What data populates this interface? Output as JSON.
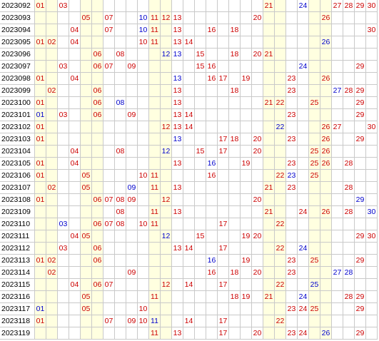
{
  "numbers": [
    "01",
    "02",
    "03",
    "04",
    "05",
    "06",
    "07",
    "08",
    "09",
    "10",
    "11",
    "12",
    "13",
    "14",
    "15",
    "16",
    "17",
    "18",
    "19",
    "20",
    "21",
    "22",
    "23",
    "24",
    "25",
    "26",
    "27",
    "28",
    "29",
    "30"
  ],
  "highlight_columns": [
    "01",
    "02",
    "05",
    "06",
    "11",
    "12",
    "21",
    "22",
    "25",
    "26"
  ],
  "colors": {
    "red": "#cc0000",
    "blue": "#0000cc",
    "highlight": "#ffffe0",
    "grid": "#c9c9c9"
  },
  "rows": [
    {
      "issue": "2023092",
      "red": [
        "01",
        "03",
        "21",
        "27",
        "28",
        "29",
        "30"
      ],
      "blue": [
        "24"
      ]
    },
    {
      "issue": "2023093",
      "red": [
        "05",
        "07",
        "11",
        "12",
        "13",
        "20",
        "26"
      ],
      "blue": [
        "10"
      ]
    },
    {
      "issue": "2023094",
      "red": [
        "04",
        "07",
        "11",
        "13",
        "16",
        "18",
        "30"
      ],
      "blue": [
        "10"
      ]
    },
    {
      "issue": "2023095",
      "red": [
        "01",
        "02",
        "04",
        "10",
        "11",
        "13",
        "14"
      ],
      "blue": [
        "26"
      ]
    },
    {
      "issue": "2023096",
      "red": [
        "06",
        "08",
        "15",
        "18",
        "20",
        "21"
      ],
      "blue": [
        "12",
        "13"
      ]
    },
    {
      "issue": "2023097",
      "red": [
        "03",
        "06",
        "07",
        "09",
        "15",
        "16",
        "29"
      ],
      "blue": [
        "24"
      ]
    },
    {
      "issue": "2023098",
      "red": [
        "01",
        "04",
        "16",
        "17",
        "19",
        "23",
        "26"
      ],
      "blue": [
        "13"
      ]
    },
    {
      "issue": "2023099",
      "red": [
        "02",
        "06",
        "13",
        "18",
        "23",
        "28",
        "29"
      ],
      "blue": [
        "27"
      ]
    },
    {
      "issue": "2023100",
      "red": [
        "01",
        "06",
        "13",
        "21",
        "22",
        "25",
        "29"
      ],
      "blue": [
        "08"
      ]
    },
    {
      "issue": "2023101",
      "red": [
        "03",
        "06",
        "09",
        "13",
        "14",
        "23",
        "29"
      ],
      "blue": [
        "01"
      ]
    },
    {
      "issue": "2023102",
      "red": [
        "01",
        "12",
        "13",
        "14",
        "26",
        "27",
        "30"
      ],
      "blue": [
        "22"
      ]
    },
    {
      "issue": "2023103",
      "red": [
        "01",
        "17",
        "18",
        "20",
        "23",
        "26",
        "29"
      ],
      "blue": [
        "13"
      ]
    },
    {
      "issue": "2023104",
      "red": [
        "04",
        "08",
        "15",
        "17",
        "20",
        "25",
        "26"
      ],
      "blue": [
        "12"
      ]
    },
    {
      "issue": "2023105",
      "red": [
        "01",
        "04",
        "13",
        "19",
        "23",
        "25",
        "26",
        "28"
      ],
      "blue": [
        "16"
      ]
    },
    {
      "issue": "2023106",
      "red": [
        "01",
        "05",
        "10",
        "11",
        "16",
        "22",
        "25"
      ],
      "blue": [
        "23"
      ]
    },
    {
      "issue": "2023107",
      "red": [
        "02",
        "05",
        "11",
        "13",
        "21",
        "23",
        "28"
      ],
      "blue": [
        "09"
      ]
    },
    {
      "issue": "2023108",
      "red": [
        "01",
        "06",
        "07",
        "08",
        "09",
        "12",
        "20"
      ],
      "blue": [
        "29"
      ]
    },
    {
      "issue": "2023109",
      "red": [
        "08",
        "11",
        "13",
        "21",
        "24",
        "26",
        "28"
      ],
      "blue": [
        "30"
      ]
    },
    {
      "issue": "2023110",
      "red": [
        "06",
        "07",
        "08",
        "10",
        "11",
        "17",
        "22"
      ],
      "blue": [
        "03"
      ]
    },
    {
      "issue": "2023111",
      "red": [
        "04",
        "05",
        "15",
        "19",
        "20",
        "29",
        "30"
      ],
      "blue": [
        "12"
      ]
    },
    {
      "issue": "2023112",
      "red": [
        "03",
        "06",
        "13",
        "14",
        "17",
        "22"
      ],
      "blue": [
        "24"
      ]
    },
    {
      "issue": "2023113",
      "red": [
        "01",
        "02",
        "06",
        "19",
        "23",
        "25",
        "29"
      ],
      "blue": [
        "16"
      ]
    },
    {
      "issue": "2023114",
      "red": [
        "02",
        "09",
        "16",
        "18",
        "20",
        "23"
      ],
      "blue": [
        "27",
        "28"
      ]
    },
    {
      "issue": "2023115",
      "red": [
        "04",
        "06",
        "07",
        "12",
        "14",
        "17",
        "22"
      ],
      "blue": [
        "25"
      ]
    },
    {
      "issue": "2023116",
      "red": [
        "05",
        "11",
        "18",
        "19",
        "21",
        "28",
        "29"
      ],
      "blue": [
        "24"
      ]
    },
    {
      "issue": "2023117",
      "red": [
        "05",
        "10",
        "23",
        "24",
        "25",
        "29"
      ],
      "blue": [
        "01"
      ]
    },
    {
      "issue": "2023118",
      "red": [
        "01",
        "07",
        "09",
        "10",
        "14",
        "17",
        "22"
      ],
      "blue": [
        "11"
      ]
    },
    {
      "issue": "2023119",
      "red": [
        "11",
        "13",
        "17",
        "20",
        "23",
        "24",
        "29"
      ],
      "blue": [
        "26"
      ]
    }
  ]
}
